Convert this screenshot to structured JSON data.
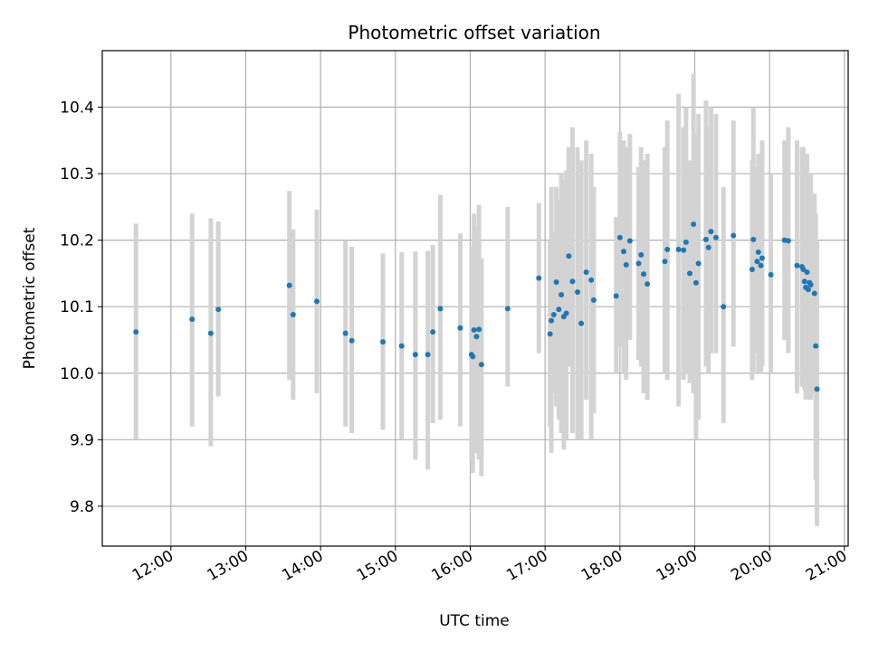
{
  "chart_data": {
    "type": "scatter",
    "title": "Photometric offset variation",
    "xlabel": "UTC time",
    "ylabel": "Photometric offset",
    "grid": true,
    "xlim": [
      "11:05",
      "21:03"
    ],
    "ylim": [
      9.74,
      10.485
    ],
    "x_ticks": [
      "12:00",
      "13:00",
      "14:00",
      "15:00",
      "16:00",
      "17:00",
      "18:00",
      "19:00",
      "20:00",
      "21:00"
    ],
    "y_ticks": [
      "9.8",
      "9.9",
      "10.0",
      "10.1",
      "10.2",
      "10.3",
      "10.4"
    ],
    "error_bar_color": "#d3d3d3",
    "marker_color": "#1f77b4",
    "series": [
      {
        "x": [
          "11:32",
          "12:17",
          "12:32",
          "12:38",
          "13:35",
          "13:38",
          "13:57",
          "14:20",
          "14:25",
          "14:50",
          "15:05",
          "15:16",
          "15:26",
          "15:30",
          "15:36",
          "15:52",
          "16:01",
          "16:02",
          "16:03",
          "16:05",
          "16:07",
          "16:09",
          "16:30",
          "16:55",
          "17:04",
          "17:05",
          "17:07",
          "17:09",
          "17:11",
          "17:13",
          "17:15",
          "17:17",
          "17:19",
          "17:22",
          "17:26",
          "17:29",
          "17:33",
          "17:37",
          "17:39",
          "17:57",
          "18:00",
          "18:03",
          "18:05",
          "18:08",
          "18:15",
          "18:17",
          "18:19",
          "18:22",
          "18:36",
          "18:38",
          "18:47",
          "18:51",
          "18:53",
          "18:56",
          "18:59",
          "19:01",
          "19:03",
          "19:09",
          "19:11",
          "19:13",
          "19:17",
          "19:23",
          "19:31",
          "19:46",
          "19:47",
          "19:50",
          "19:51",
          "19:53",
          "19:54",
          "20:01",
          "20:12",
          "20:15",
          "20:22",
          "20:26",
          "20:27",
          "20:28",
          "20:29",
          "20:30",
          "20:31",
          "20:32",
          "20:33",
          "20:36",
          "20:37",
          "20:38"
        ],
        "y": [
          10.062,
          10.081,
          10.06,
          10.096,
          10.132,
          10.088,
          10.108,
          10.06,
          10.049,
          10.047,
          10.041,
          10.028,
          10.028,
          10.062,
          10.097,
          10.068,
          10.028,
          10.025,
          10.065,
          10.055,
          10.066,
          10.013,
          10.097,
          10.143,
          10.059,
          10.079,
          10.088,
          10.137,
          10.096,
          10.118,
          10.085,
          10.09,
          10.176,
          10.138,
          10.122,
          10.075,
          10.152,
          10.14,
          10.11,
          10.116,
          10.204,
          10.183,
          10.163,
          10.199,
          10.165,
          10.178,
          10.149,
          10.134,
          10.168,
          10.186,
          10.186,
          10.185,
          10.197,
          10.15,
          10.224,
          10.136,
          10.165,
          10.201,
          10.189,
          10.213,
          10.204,
          10.1,
          10.207,
          10.156,
          10.201,
          10.168,
          10.182,
          10.162,
          10.173,
          10.148,
          10.2,
          10.199,
          10.162,
          10.16,
          10.156,
          10.138,
          10.129,
          10.152,
          10.126,
          10.136,
          10.133,
          10.12,
          10.041,
          9.976
        ],
        "err_lo": [
          9.9,
          9.92,
          9.89,
          9.965,
          9.99,
          9.96,
          9.97,
          9.92,
          9.91,
          9.915,
          9.9,
          9.87,
          9.855,
          9.925,
          9.93,
          9.92,
          9.87,
          9.85,
          9.9,
          9.88,
          9.87,
          9.845,
          9.98,
          10.03,
          9.92,
          9.88,
          9.97,
          9.95,
          9.93,
          9.91,
          9.885,
          9.9,
          10.01,
          9.91,
          9.9,
          9.9,
          9.96,
          9.9,
          9.94,
          10.0,
          10.04,
          10.0,
          9.99,
          10.05,
          10.02,
          10.01,
          9.97,
          9.96,
          10.0,
          9.99,
          9.95,
          9.99,
          10.0,
          9.985,
          9.97,
          9.9,
          9.93,
          10.01,
          10.0,
          10.03,
          10.03,
          9.925,
          10.04,
          9.99,
          10.0,
          10.03,
          10.0,
          10.0,
          10.01,
          10.0,
          10.05,
          10.03,
          9.97,
          9.98,
          9.99,
          9.975,
          9.96,
          9.97,
          9.96,
          9.975,
          9.96,
          9.97,
          9.84,
          9.77
        ],
        "err_hi": [
          10.225,
          10.24,
          10.233,
          10.228,
          10.274,
          10.216,
          10.246,
          10.2,
          10.19,
          10.18,
          10.182,
          10.183,
          10.184,
          10.193,
          10.268,
          10.21,
          10.19,
          10.19,
          10.24,
          10.22,
          10.253,
          10.173,
          10.25,
          10.256,
          10.2,
          10.28,
          10.21,
          10.28,
          10.26,
          10.3,
          10.29,
          10.305,
          10.34,
          10.37,
          10.34,
          10.32,
          10.35,
          10.33,
          10.28,
          10.235,
          10.363,
          10.35,
          10.34,
          10.36,
          10.31,
          10.34,
          10.32,
          10.33,
          10.34,
          10.38,
          10.42,
          10.37,
          10.4,
          10.32,
          10.45,
          10.36,
          10.39,
          10.41,
          10.37,
          10.4,
          10.39,
          10.28,
          10.38,
          10.32,
          10.4,
          10.31,
          10.33,
          10.32,
          10.35,
          10.3,
          10.35,
          10.37,
          10.35,
          10.34,
          10.34,
          10.32,
          10.3,
          10.33,
          10.29,
          10.3,
          10.3,
          10.27,
          10.24,
          10.2
        ]
      }
    ]
  }
}
